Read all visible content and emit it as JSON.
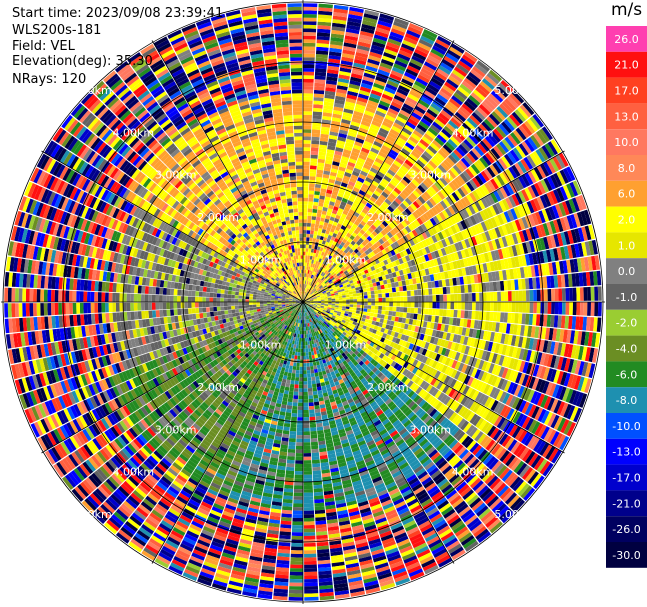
{
  "header": {
    "start_time": "Start time: 2023/09/08 23:39:41",
    "instrument": "WLS200s-181",
    "field": "Field: VEL",
    "elevation": "Elevation(deg): 35.30",
    "nrays": "NRays: 120"
  },
  "colorbar": {
    "unit": "m/s",
    "bins": [
      {
        "label": "26.0",
        "color": "#ff3fb0"
      },
      {
        "label": "21.0",
        "color": "#ff1010"
      },
      {
        "label": "17.0",
        "color": "#ff4020"
      },
      {
        "label": "13.0",
        "color": "#ff6040"
      },
      {
        "label": "10.0",
        "color": "#ff7860"
      },
      {
        "label": "8.0",
        "color": "#ff8858"
      },
      {
        "label": "6.0",
        "color": "#ffa030"
      },
      {
        "label": "2.0",
        "color": "#ffff00"
      },
      {
        "label": "1.0",
        "color": "#e6e600"
      },
      {
        "label": "0.0",
        "color": "#808080"
      },
      {
        "label": "-1.0",
        "color": "#636363"
      },
      {
        "label": "-2.0",
        "color": "#9acd32"
      },
      {
        "label": "-4.0",
        "color": "#6b8e23"
      },
      {
        "label": "-6.0",
        "color": "#228b22"
      },
      {
        "label": "-8.0",
        "color": "#1e90b0"
      },
      {
        "label": "-10.0",
        "color": "#0050ff"
      },
      {
        "label": "-13.0",
        "color": "#0000ff"
      },
      {
        "label": "-17.0",
        "color": "#0000cd"
      },
      {
        "label": "-21.0",
        "color": "#00008b"
      },
      {
        "label": "-26.0",
        "color": "#000060"
      },
      {
        "label": "-30.0",
        "color": "#000040"
      }
    ]
  },
  "chart_data": {
    "type": "heatmap",
    "projection": "polar-ppi",
    "field": "VEL",
    "units": "m/s",
    "n_rays": 120,
    "elevation_deg": 35.3,
    "range_rings_km": [
      1.0,
      2.0,
      3.0,
      4.0,
      5.0
    ],
    "ring_labels": [
      "1.00km",
      "2.00km",
      "3.00km",
      "4.00km",
      "5.00km"
    ],
    "azimuth_lines_deg": [
      0,
      30,
      60,
      90,
      120,
      150,
      180,
      210,
      240,
      270,
      300,
      330
    ],
    "vmin": -30.0,
    "vmax": 26.0,
    "sectors": [
      {
        "azimuth_range_deg": [
          300,
          360
        ],
        "range_km": [
          0,
          3.5
        ],
        "dominant_velocity_ms": 6.0
      },
      {
        "azimuth_range_deg": [
          0,
          60
        ],
        "range_km": [
          0,
          3.5
        ],
        "dominant_velocity_ms": 6.0
      },
      {
        "azimuth_range_deg": [
          60,
          130
        ],
        "range_km": [
          0,
          3.8
        ],
        "dominant_velocity_ms": 2.0
      },
      {
        "azimuth_range_deg": [
          130,
          200
        ],
        "range_km": [
          0,
          3.5
        ],
        "dominant_velocity_ms": -6.0
      },
      {
        "azimuth_range_deg": [
          200,
          250
        ],
        "range_km": [
          0,
          3.5
        ],
        "dominant_velocity_ms": -4.0
      },
      {
        "azimuth_range_deg": [
          250,
          300
        ],
        "range_km": [
          0,
          3.2
        ],
        "dominant_velocity_ms": 0.0
      }
    ],
    "far_range_km": [
      3.5,
      6.5
    ],
    "far_range_pattern": "noise"
  }
}
